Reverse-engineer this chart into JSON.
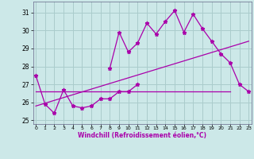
{
  "xlabel": "Windchill (Refroidissement éolien,°C)",
  "background_color": "#cce8e8",
  "grid_color": "#aacccc",
  "line_color": "#aa00aa",
  "x_hours": [
    0,
    1,
    2,
    3,
    4,
    5,
    6,
    7,
    8,
    9,
    10,
    11,
    12,
    13,
    14,
    15,
    16,
    17,
    18,
    19,
    20,
    21,
    22,
    23
  ],
  "series1_x": [
    0,
    1,
    2,
    3,
    4,
    5,
    6,
    7,
    8,
    9,
    10,
    11
  ],
  "series1_y": [
    27.5,
    25.9,
    25.4,
    26.7,
    25.8,
    25.7,
    25.8,
    26.2,
    26.2,
    26.6,
    26.6,
    27.0
  ],
  "series2_x": [
    8,
    9,
    10,
    11,
    12,
    13,
    14,
    15,
    16,
    17,
    18,
    19,
    20,
    21,
    22,
    23
  ],
  "series2_y": [
    27.9,
    29.9,
    28.8,
    29.3,
    30.4,
    29.8,
    30.5,
    31.1,
    29.9,
    30.9,
    30.1,
    29.4,
    28.7,
    28.2,
    27.0,
    26.6
  ],
  "series3_x": [
    0,
    23
  ],
  "series3_y": [
    25.8,
    29.4
  ],
  "series4_x": [
    0,
    21
  ],
  "series4_y": [
    26.6,
    26.6
  ],
  "ylim": [
    24.8,
    31.6
  ],
  "xlim": [
    -0.3,
    23.3
  ],
  "yticks": [
    25,
    26,
    27,
    28,
    29,
    30,
    31
  ]
}
